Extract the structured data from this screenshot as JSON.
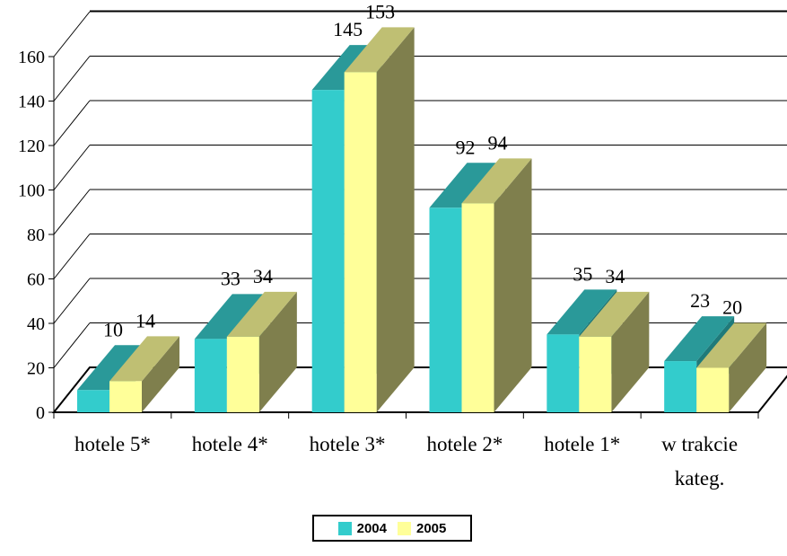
{
  "chart_data": {
    "type": "bar",
    "categories": [
      "hotele 5*",
      "hotele 4*",
      "hotele 3*",
      "hotele 2*",
      "hotele 1*",
      "w trakcie kateg."
    ],
    "series": [
      {
        "name": "2004",
        "values": [
          10,
          33,
          145,
          92,
          35,
          23
        ],
        "color": "#33CCCC",
        "top_color": "#2A9999",
        "side_color": "#1F7A7A"
      },
      {
        "name": "2005",
        "values": [
          14,
          34,
          153,
          94,
          34,
          20
        ],
        "color": "#FFFF99",
        "top_color": "#BFBF73",
        "side_color": "#7F7F4D"
      }
    ],
    "ylim": [
      0,
      160
    ],
    "yticks": [
      "0",
      "20",
      "40",
      "60",
      "80",
      "100",
      "120",
      "140",
      "160"
    ],
    "grid": true,
    "legend": "bottom-center",
    "title": "",
    "xlabel": "",
    "ylabel": ""
  }
}
